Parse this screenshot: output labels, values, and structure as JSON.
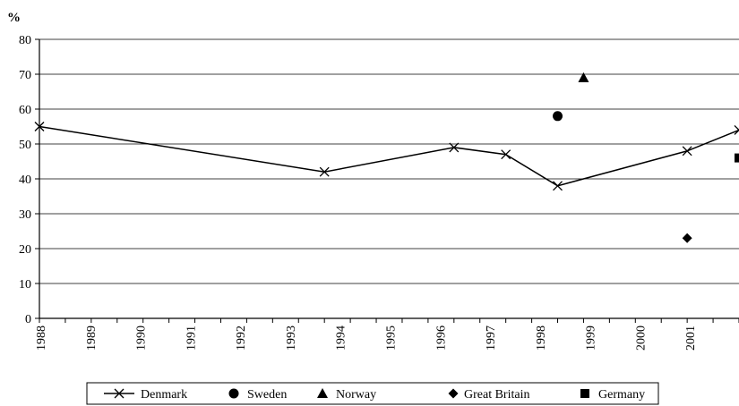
{
  "chart_data": {
    "type": "line",
    "title": "",
    "xlabel": "",
    "ylabel": "%",
    "ylim": [
      0,
      80
    ],
    "yticks": [
      0,
      10,
      20,
      30,
      40,
      50,
      60,
      70,
      80
    ],
    "x_tick_labels": [
      "1988",
      "1989",
      "1990",
      "1991",
      "1992",
      "1993",
      "1994",
      "1995",
      "1996",
      "1997",
      "1998",
      "1999",
      "2000",
      "2001"
    ],
    "grid": "horizontal",
    "legend_position": "bottom",
    "series": [
      {
        "name": "Denmark",
        "marker": "x",
        "line": true,
        "points": [
          {
            "x": 1988.0,
            "y": 55
          },
          {
            "x": 1993.5,
            "y": 42
          },
          {
            "x": 1996.0,
            "y": 49
          },
          {
            "x": 1997.0,
            "y": 47
          },
          {
            "x": 1998.0,
            "y": 38
          },
          {
            "x": 2000.5,
            "y": 48
          },
          {
            "x": 2001.5,
            "y": 54
          }
        ]
      },
      {
        "name": "Sweden",
        "marker": "circle",
        "line": false,
        "points": [
          {
            "x": 1998.0,
            "y": 58
          }
        ]
      },
      {
        "name": "Norway",
        "marker": "triangle",
        "line": false,
        "points": [
          {
            "x": 1998.5,
            "y": 69
          }
        ]
      },
      {
        "name": "Great Britain",
        "marker": "diamond",
        "line": false,
        "points": [
          {
            "x": 2000.5,
            "y": 23
          }
        ]
      },
      {
        "name": "Germany",
        "marker": "square",
        "line": false,
        "points": [
          {
            "x": 2001.5,
            "y": 46
          }
        ]
      }
    ]
  }
}
